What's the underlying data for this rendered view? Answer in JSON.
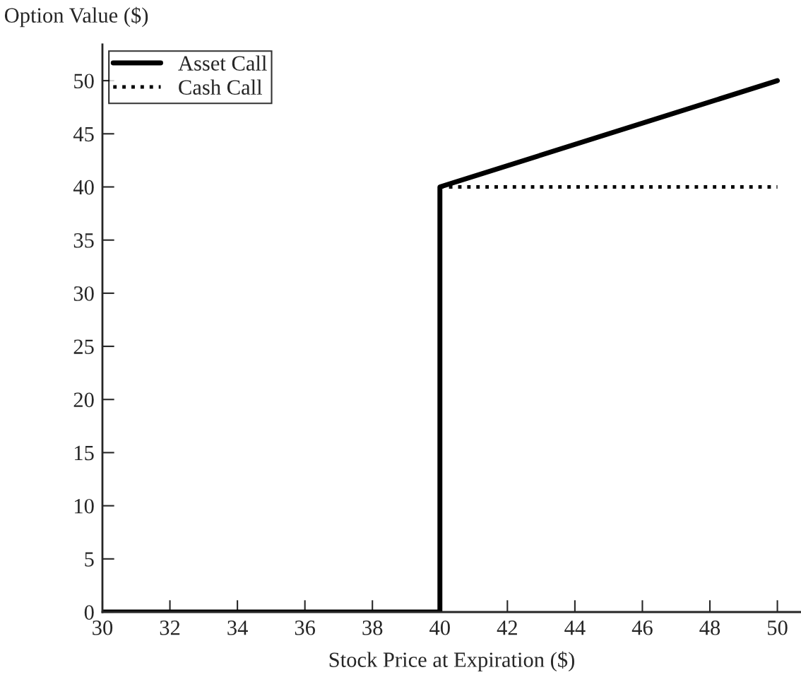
{
  "chart_data": {
    "type": "line",
    "xlabel": "Stock Price at Expiration ($)",
    "ylabel": "Option Value ($)",
    "series": [
      {
        "name": "Asset Call",
        "color": "#000000",
        "x": [
          30,
          40,
          40,
          50
        ],
        "values": [
          0,
          0,
          40,
          50
        ],
        "line_style": "solid"
      },
      {
        "name": "Cash Call",
        "color": "#000000",
        "x": [
          40,
          50
        ],
        "values": [
          40,
          40
        ],
        "line_style": "dotted"
      }
    ],
    "xlim": [
      30,
      50.7
    ],
    "xticks": [
      30,
      32,
      34,
      36,
      38,
      40,
      42,
      44,
      46,
      48,
      50
    ],
    "ylim": [
      0,
      53.4
    ],
    "yticks": [
      0,
      5,
      10,
      15,
      20,
      25,
      30,
      35,
      40,
      45,
      50
    ],
    "grid": false,
    "legend": "top left",
    "marker": "none"
  }
}
